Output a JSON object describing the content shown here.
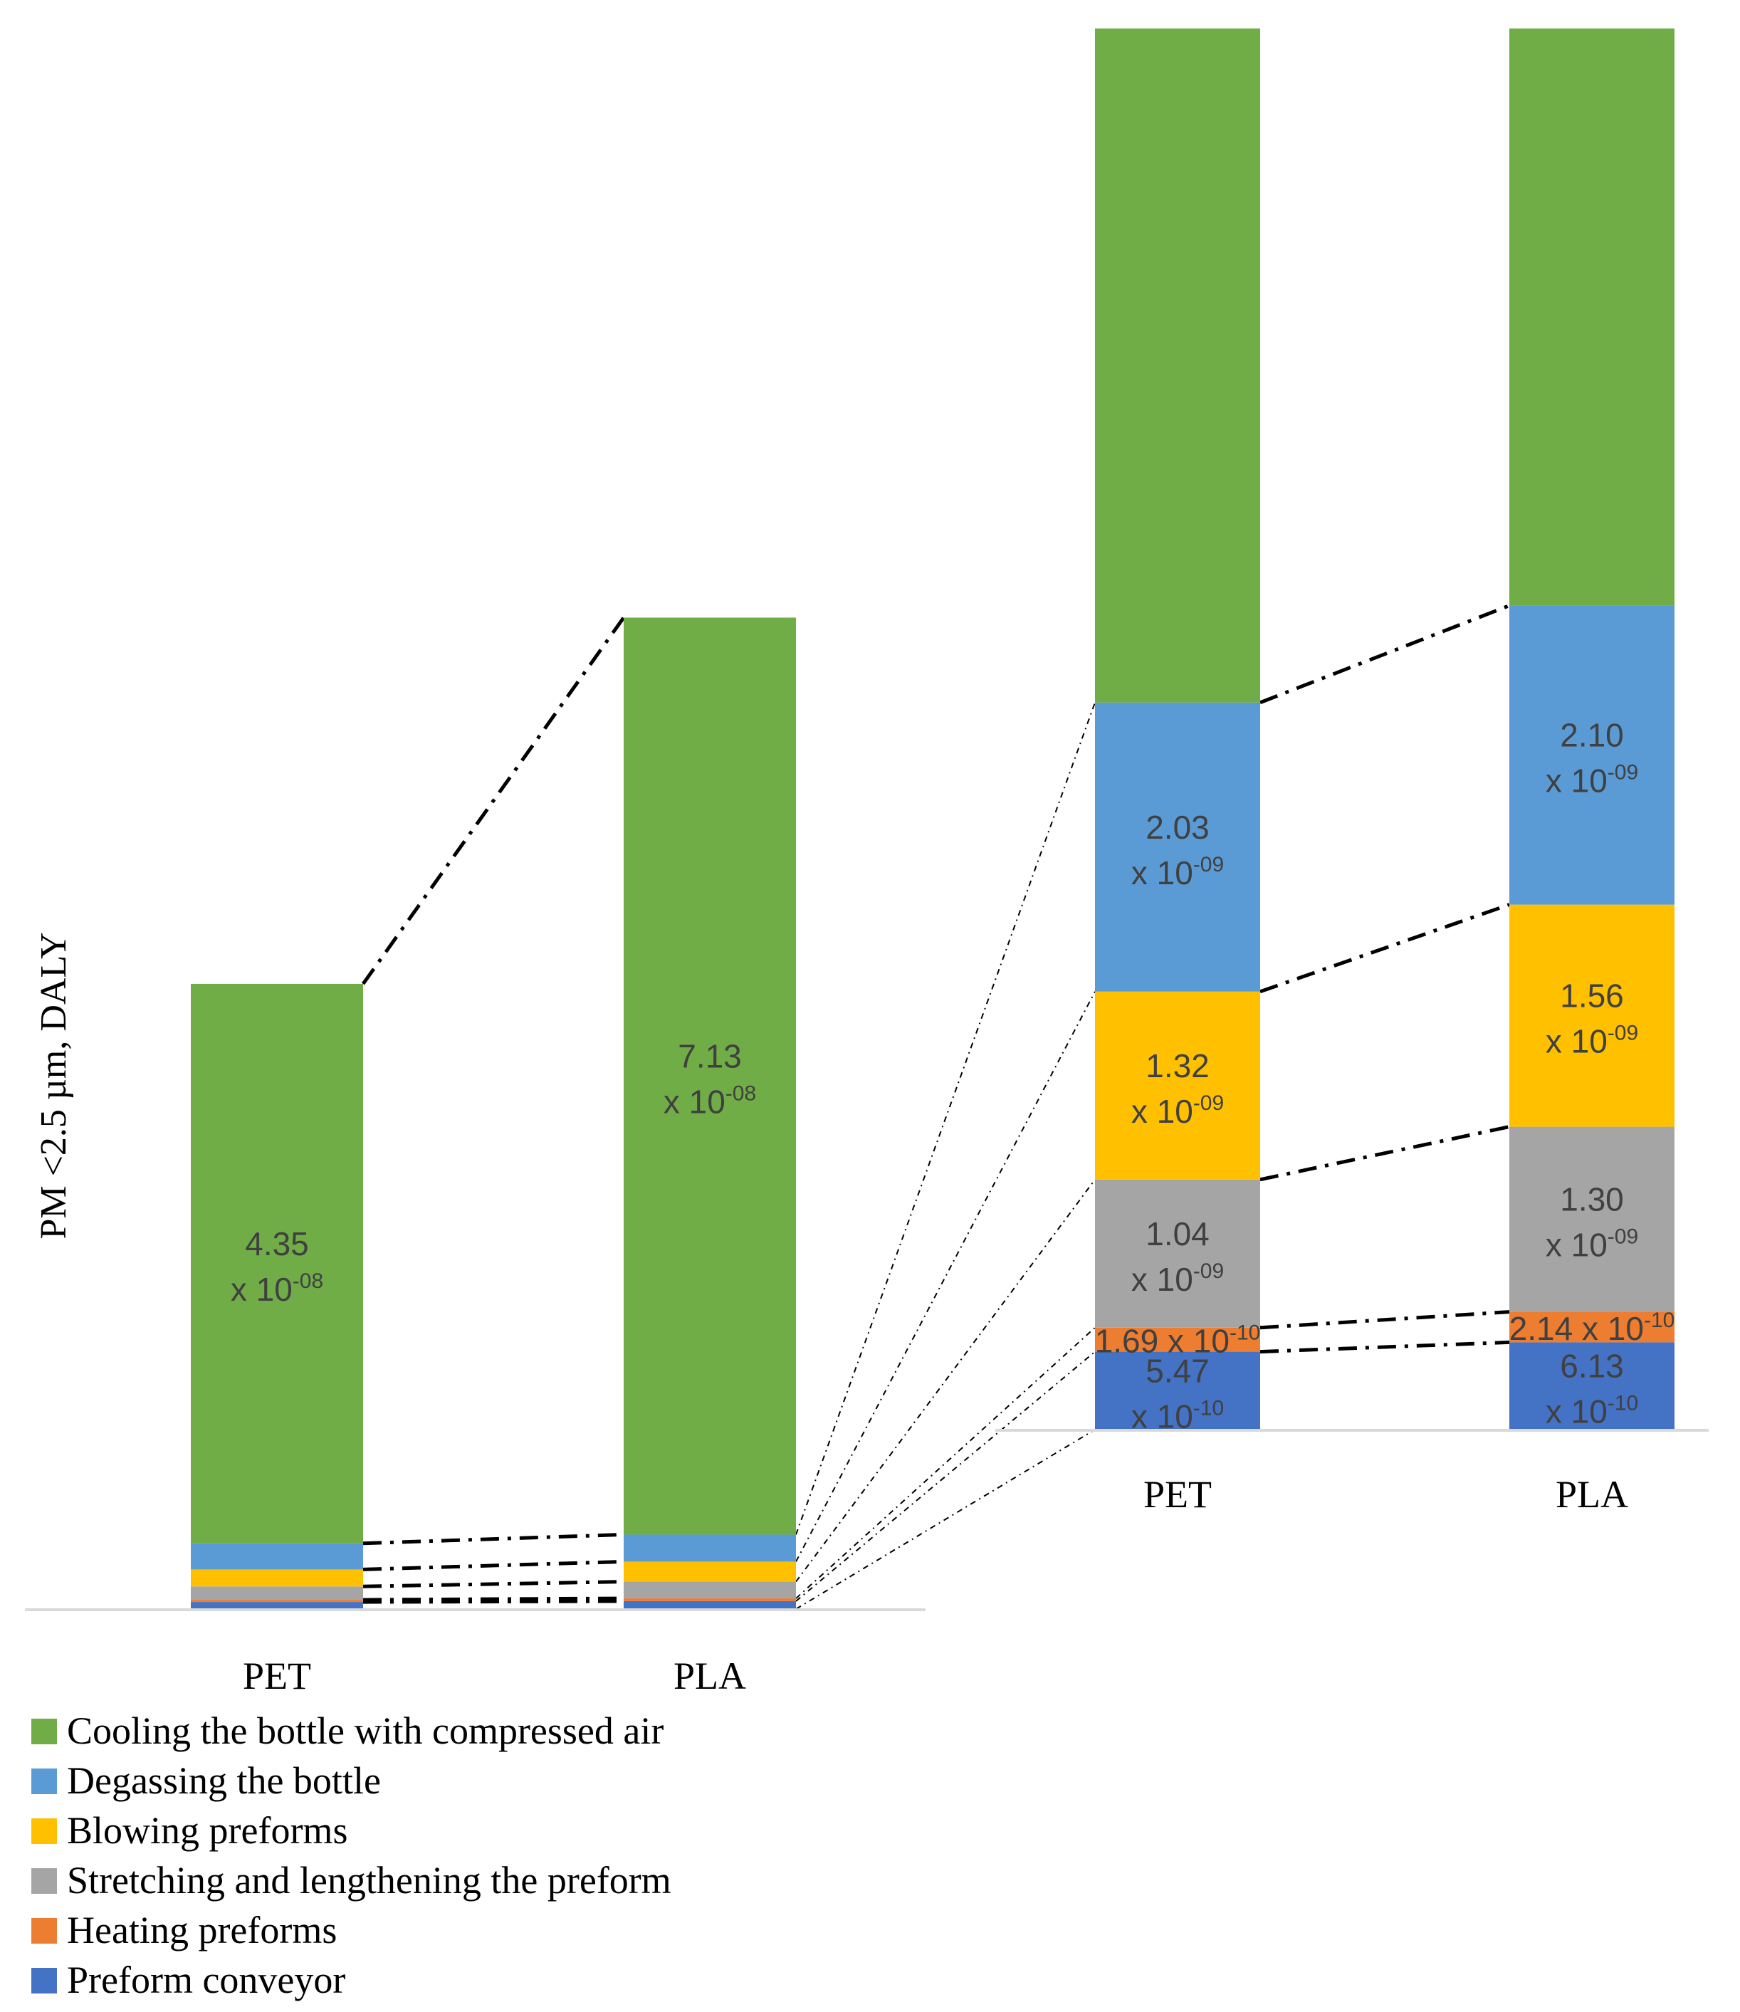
{
  "chart_data": [
    {
      "id": "overview",
      "type": "bar",
      "stacked": true,
      "ylabel": "PM <2.5 µm, DALY",
      "categories": [
        "PET",
        "PLA"
      ],
      "series": [
        {
          "name": "Preform conveyor",
          "color": "#4472C4",
          "values": [
            5.47e-10,
            6.13e-10
          ]
        },
        {
          "name": "Heating preforms",
          "color": "#ED7D31",
          "values": [
            1.69e-10,
            2.14e-10
          ]
        },
        {
          "name": "Stretching and lengthening the preform",
          "color": "#A5A5A5",
          "values": [
            1.04e-09,
            1.3e-09
          ]
        },
        {
          "name": "Blowing preforms",
          "color": "#FFC000",
          "values": [
            1.32e-09,
            1.56e-09
          ]
        },
        {
          "name": "Degassing the bottle",
          "color": "#5B9BD5",
          "values": [
            2.03e-09,
            2.1e-09
          ]
        },
        {
          "name": "Cooling the bottle with compressed air",
          "color": "#70AD47",
          "values": [
            4.35e-08,
            7.13e-08
          ]
        }
      ],
      "data_labels": [
        {
          "series": 5,
          "category": 0,
          "mantissa": "4.35",
          "prefix": "x 10",
          "exponent": "-08"
        },
        {
          "series": 5,
          "category": 1,
          "mantissa": "7.13",
          "prefix": "x 10",
          "exponent": "-08"
        }
      ],
      "ylim": [
        0,
        8e-08
      ]
    },
    {
      "id": "zoom",
      "type": "bar",
      "stacked": true,
      "note": "Magnified view of the lower segments; top (cooling) segment truncated",
      "categories": [
        "PET",
        "PLA"
      ],
      "series_ref": "overview",
      "data_labels": [
        {
          "series": 0,
          "category": 0,
          "mantissa": "5.47",
          "prefix": "x 10",
          "exponent": "-10"
        },
        {
          "series": 0,
          "category": 1,
          "mantissa": "6.13",
          "prefix": "x 10",
          "exponent": "-10"
        },
        {
          "series": 1,
          "category": 0,
          "inline": "1.69 x 10",
          "exponent": "-10"
        },
        {
          "series": 1,
          "category": 1,
          "inline": "2.14 x 10",
          "exponent": "-10"
        },
        {
          "series": 2,
          "category": 0,
          "mantissa": "1.04",
          "prefix": "x 10",
          "exponent": "-09"
        },
        {
          "series": 2,
          "category": 1,
          "mantissa": "1.30",
          "prefix": "x 10",
          "exponent": "-09"
        },
        {
          "series": 3,
          "category": 0,
          "mantissa": "1.32",
          "prefix": "x 10",
          "exponent": "-09"
        },
        {
          "series": 3,
          "category": 1,
          "mantissa": "1.56",
          "prefix": "x 10",
          "exponent": "-09"
        },
        {
          "series": 4,
          "category": 0,
          "mantissa": "2.03",
          "prefix": "x 10",
          "exponent": "-09"
        },
        {
          "series": 4,
          "category": 1,
          "mantissa": "2.10",
          "prefix": "x 10",
          "exponent": "-09"
        }
      ],
      "ylim": [
        0,
        8.7e-09
      ]
    }
  ],
  "legend": [
    {
      "label": "Cooling the bottle with compressed air",
      "color": "#70AD47"
    },
    {
      "label": "Degassing the bottle",
      "color": "#5B9BD5"
    },
    {
      "label": "Blowing preforms",
      "color": "#FFC000"
    },
    {
      "label": "Stretching and lengthening the preform",
      "color": "#A5A5A5"
    },
    {
      "label": "Heating preforms",
      "color": "#ED7D31"
    },
    {
      "label": "Preform conveyor",
      "color": "#4472C4"
    }
  ],
  "colors": {
    "axis": "#D9D9D9",
    "label_text": "#404040",
    "connector": "#000000"
  }
}
